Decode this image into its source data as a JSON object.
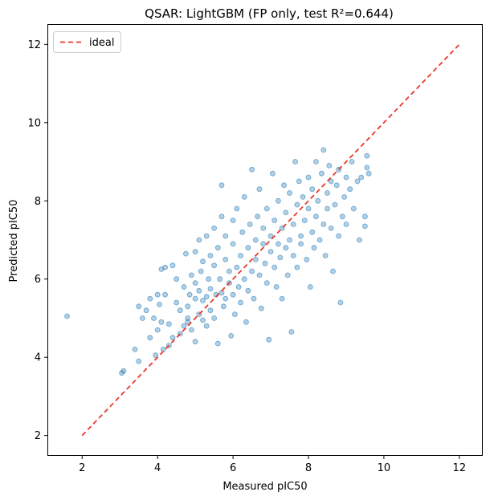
{
  "chart_data": {
    "type": "scatter",
    "title": "QSAR: LightGBM (FP only, test R²=0.644)",
    "xlabel": "Measured pIC50",
    "ylabel": "Predicted pIC50",
    "xlim": [
      1.1,
      12.6
    ],
    "ylim": [
      1.5,
      12.5
    ],
    "xticks": [
      2,
      4,
      6,
      8,
      10,
      12
    ],
    "yticks": [
      2,
      4,
      6,
      8,
      10,
      12
    ],
    "grid": false,
    "legend": {
      "position": "top-left",
      "entries": [
        "ideal"
      ]
    },
    "point_color": "#1f77b4",
    "ideal_color": "#e8392b",
    "series": [
      {
        "name": "points",
        "points": [
          [
            1.6,
            5.05
          ],
          [
            3.05,
            3.6
          ],
          [
            3.1,
            3.65
          ],
          [
            3.4,
            4.2
          ],
          [
            3.5,
            3.9
          ],
          [
            3.5,
            5.3
          ],
          [
            3.6,
            5.0
          ],
          [
            3.7,
            5.2
          ],
          [
            3.8,
            5.5
          ],
          [
            3.8,
            4.5
          ],
          [
            3.9,
            5.0
          ],
          [
            3.95,
            4.05
          ],
          [
            4.0,
            4.7
          ],
          [
            4.0,
            5.6
          ],
          [
            4.05,
            5.35
          ],
          [
            4.1,
            4.9
          ],
          [
            4.1,
            6.25
          ],
          [
            4.15,
            4.2
          ],
          [
            4.2,
            5.6
          ],
          [
            4.2,
            6.3
          ],
          [
            4.3,
            4.85
          ],
          [
            4.3,
            4.3
          ],
          [
            4.4,
            4.5
          ],
          [
            4.4,
            6.35
          ],
          [
            4.5,
            6.0
          ],
          [
            4.5,
            5.4
          ],
          [
            4.6,
            4.6
          ],
          [
            4.6,
            5.2
          ],
          [
            4.7,
            4.8
          ],
          [
            4.7,
            5.8
          ],
          [
            4.75,
            6.65
          ],
          [
            4.8,
            4.9
          ],
          [
            4.8,
            5.3
          ],
          [
            4.8,
            5.0
          ],
          [
            4.85,
            5.6
          ],
          [
            4.9,
            4.7
          ],
          [
            4.9,
            6.1
          ],
          [
            5.0,
            5.5
          ],
          [
            5.0,
            4.4
          ],
          [
            5.0,
            5.9
          ],
          [
            5.0,
            6.7
          ],
          [
            5.1,
            5.1
          ],
          [
            5.1,
            5.7
          ],
          [
            5.1,
            7.0
          ],
          [
            5.15,
            6.2
          ],
          [
            5.2,
            4.95
          ],
          [
            5.2,
            5.45
          ],
          [
            5.2,
            6.45
          ],
          [
            5.3,
            5.55
          ],
          [
            5.3,
            4.8
          ],
          [
            5.3,
            7.1
          ],
          [
            5.35,
            6.0
          ],
          [
            5.4,
            5.75
          ],
          [
            5.4,
            6.6
          ],
          [
            5.4,
            5.2
          ],
          [
            5.5,
            5.0
          ],
          [
            5.5,
            6.35
          ],
          [
            5.5,
            7.3
          ],
          [
            5.55,
            5.6
          ],
          [
            5.6,
            4.35
          ],
          [
            5.6,
            6.8
          ],
          [
            5.65,
            6.0
          ],
          [
            5.7,
            5.65
          ],
          [
            5.7,
            7.6
          ],
          [
            5.7,
            8.4
          ],
          [
            5.75,
            5.3
          ],
          [
            5.8,
            6.5
          ],
          [
            5.8,
            5.5
          ],
          [
            5.8,
            7.1
          ],
          [
            5.9,
            5.9
          ],
          [
            5.9,
            6.2
          ],
          [
            5.95,
            4.55
          ],
          [
            6.0,
            5.6
          ],
          [
            6.0,
            6.9
          ],
          [
            6.0,
            7.5
          ],
          [
            6.05,
            5.1
          ],
          [
            6.1,
            6.3
          ],
          [
            6.1,
            7.8
          ],
          [
            6.15,
            5.8
          ],
          [
            6.2,
            6.6
          ],
          [
            6.2,
            5.4
          ],
          [
            6.25,
            7.2
          ],
          [
            6.3,
            6.0
          ],
          [
            6.3,
            8.1
          ],
          [
            6.35,
            4.9
          ],
          [
            6.4,
            6.8
          ],
          [
            6.4,
            5.7
          ],
          [
            6.45,
            7.4
          ],
          [
            6.5,
            6.2
          ],
          [
            6.5,
            8.8
          ],
          [
            6.55,
            5.5
          ],
          [
            6.6,
            7.0
          ],
          [
            6.6,
            6.5
          ],
          [
            6.65,
            7.6
          ],
          [
            6.7,
            6.1
          ],
          [
            6.7,
            8.3
          ],
          [
            6.75,
            5.25
          ],
          [
            6.8,
            6.9
          ],
          [
            6.8,
            7.3
          ],
          [
            6.85,
            6.4
          ],
          [
            6.9,
            7.8
          ],
          [
            6.9,
            5.9
          ],
          [
            6.95,
            4.45
          ],
          [
            7.0,
            6.7
          ],
          [
            7.0,
            7.1
          ],
          [
            7.05,
            8.7
          ],
          [
            7.1,
            6.3
          ],
          [
            7.1,
            7.5
          ],
          [
            7.15,
            5.8
          ],
          [
            7.2,
            6.9
          ],
          [
            7.2,
            8.0
          ],
          [
            7.25,
            6.55
          ],
          [
            7.3,
            7.3
          ],
          [
            7.3,
            5.5
          ],
          [
            7.35,
            8.4
          ],
          [
            7.4,
            6.8
          ],
          [
            7.4,
            7.7
          ],
          [
            7.45,
            6.1
          ],
          [
            7.5,
            7.0
          ],
          [
            7.5,
            8.2
          ],
          [
            7.55,
            4.65
          ],
          [
            7.6,
            6.6
          ],
          [
            7.6,
            7.4
          ],
          [
            7.65,
            9.0
          ],
          [
            7.7,
            7.9
          ],
          [
            7.7,
            6.3
          ],
          [
            7.75,
            8.5
          ],
          [
            7.8,
            7.1
          ],
          [
            7.8,
            6.9
          ],
          [
            7.85,
            8.1
          ],
          [
            7.9,
            7.5
          ],
          [
            7.95,
            6.5
          ],
          [
            8.0,
            7.8
          ],
          [
            8.0,
            8.6
          ],
          [
            8.05,
            5.8
          ],
          [
            8.1,
            7.2
          ],
          [
            8.1,
            8.3
          ],
          [
            8.15,
            6.8
          ],
          [
            8.2,
            7.6
          ],
          [
            8.2,
            9.0
          ],
          [
            8.25,
            8.0
          ],
          [
            8.3,
            7.0
          ],
          [
            8.35,
            8.7
          ],
          [
            8.4,
            7.4
          ],
          [
            8.4,
            9.3
          ],
          [
            8.45,
            6.6
          ],
          [
            8.5,
            8.2
          ],
          [
            8.5,
            7.8
          ],
          [
            8.55,
            8.9
          ],
          [
            8.6,
            7.3
          ],
          [
            8.6,
            8.5
          ],
          [
            8.65,
            6.2
          ],
          [
            8.7,
            7.9
          ],
          [
            8.75,
            8.4
          ],
          [
            8.8,
            7.1
          ],
          [
            8.8,
            8.8
          ],
          [
            8.85,
            5.4
          ],
          [
            8.9,
            7.6
          ],
          [
            8.95,
            8.1
          ],
          [
            9.0,
            8.6
          ],
          [
            9.0,
            7.4
          ],
          [
            9.1,
            8.3
          ],
          [
            9.15,
            9.0
          ],
          [
            9.2,
            7.8
          ],
          [
            9.3,
            8.5
          ],
          [
            9.35,
            7.0
          ],
          [
            9.4,
            8.6
          ],
          [
            9.5,
            7.6
          ],
          [
            9.55,
            8.85
          ],
          [
            9.6,
            8.7
          ],
          [
            9.55,
            9.15
          ],
          [
            9.5,
            7.35
          ]
        ]
      }
    ],
    "ideal_line": [
      [
        2,
        2
      ],
      [
        12,
        12
      ]
    ]
  }
}
